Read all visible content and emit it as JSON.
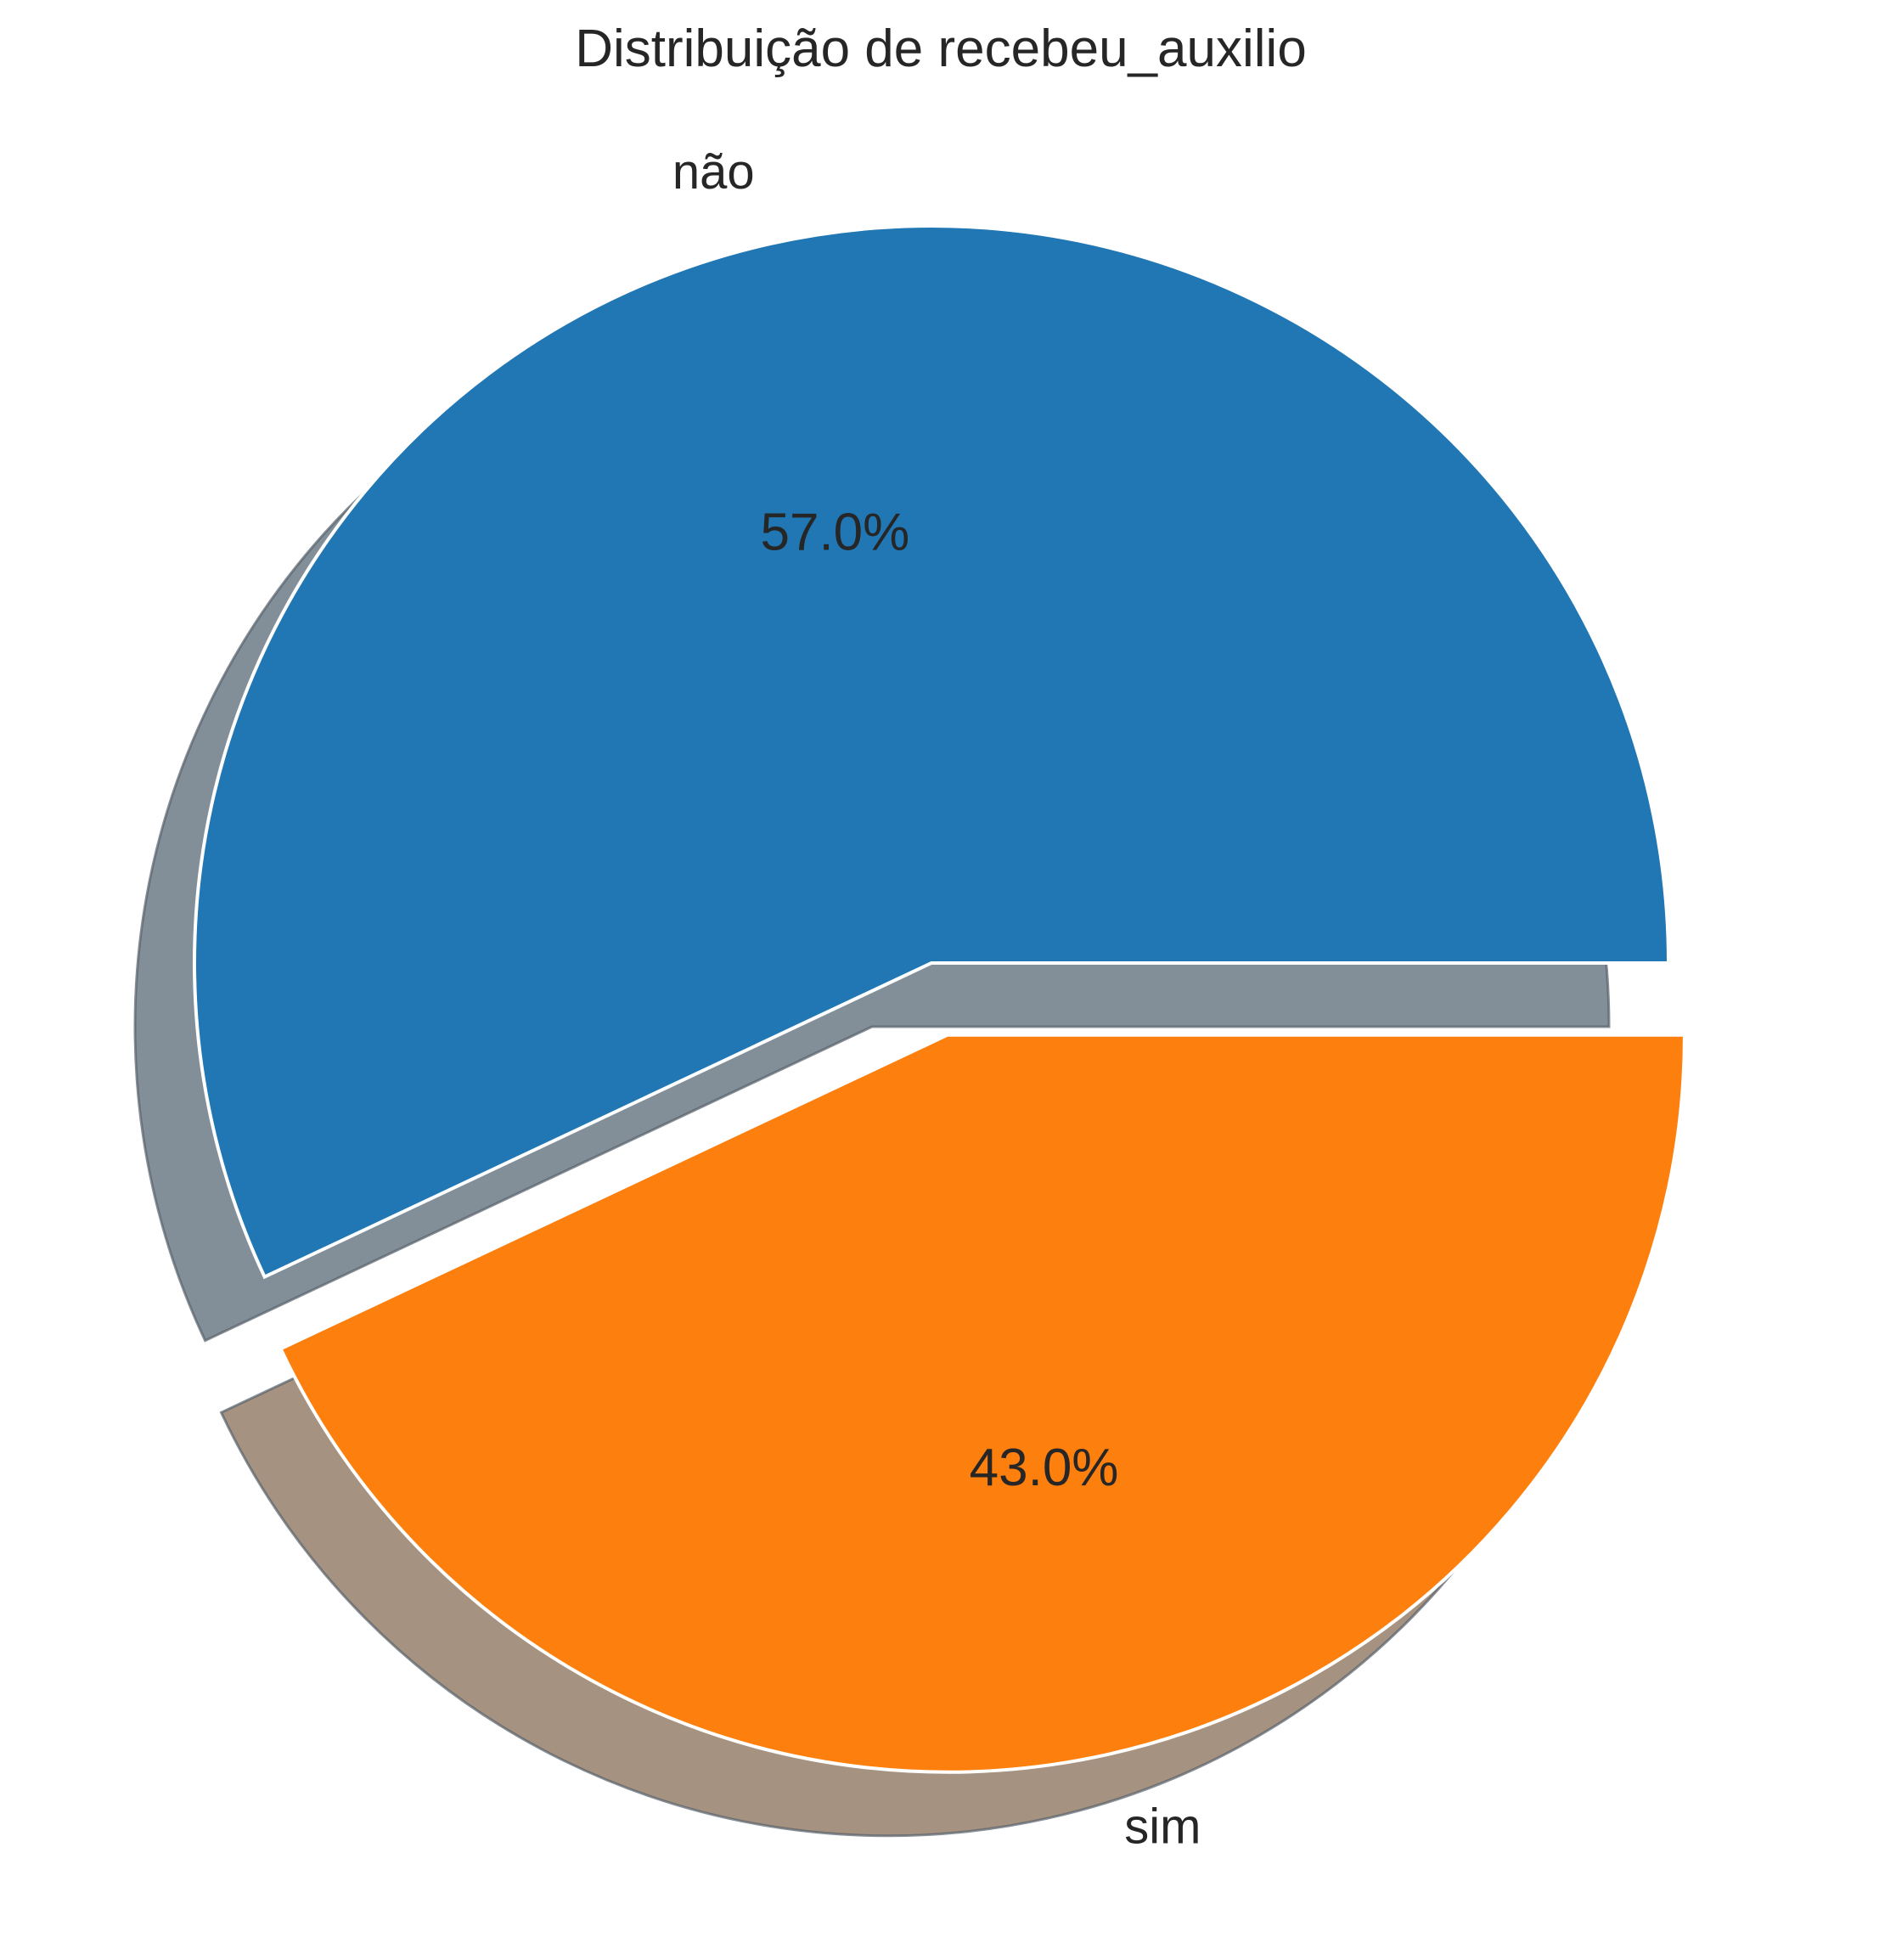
{
  "chart_data": {
    "type": "pie",
    "title": "Distribuição de recebeu_auxilio",
    "categories": [
      "não",
      "sim"
    ],
    "values": [
      57.0,
      43.0
    ],
    "value_labels": [
      "57.0%",
      "43.0%"
    ],
    "colors": [
      "#2077b4",
      "#fd7f0e"
    ],
    "shadow_colors": [
      "#828f98",
      "#a59280"
    ],
    "exploded": [
      false,
      true
    ],
    "shadow": true,
    "start_angle_deg": 0,
    "direction": "counterclockwise"
  }
}
